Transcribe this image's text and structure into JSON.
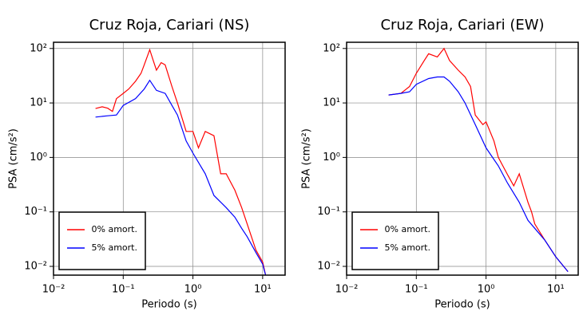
{
  "chart_data": [
    {
      "type": "line",
      "title": "Cruz Roja, Cariari (NS)",
      "xlabel": "Periodo (s)",
      "ylabel": "PSA (cm/s²)",
      "xlog": true,
      "ylog": true,
      "grid": true,
      "legend": "lower left",
      "xlim": [
        0.01,
        21
      ],
      "ylim": [
        0.0069,
        130
      ],
      "xticks": [
        {
          "value": 0.01,
          "label": "10⁻²"
        },
        {
          "value": 0.1,
          "label": "10⁻¹"
        },
        {
          "value": 1,
          "label": "10⁰"
        },
        {
          "value": 10,
          "label": "10¹"
        }
      ],
      "yticks": [
        {
          "value": 0.01,
          "label": "10⁻²"
        },
        {
          "value": 0.1,
          "label": "10⁻¹"
        },
        {
          "value": 1,
          "label": "10⁰"
        },
        {
          "value": 10,
          "label": "10¹"
        },
        {
          "value": 100,
          "label": "10²"
        }
      ],
      "series": [
        {
          "name": "0% amort.",
          "color": "#ff0000",
          "x": [
            0.04,
            0.05,
            0.06,
            0.07,
            0.08,
            0.1,
            0.12,
            0.15,
            0.18,
            0.2,
            0.24,
            0.27,
            0.3,
            0.35,
            0.4,
            0.5,
            0.6,
            0.8,
            1.0,
            1.2,
            1.5,
            2,
            2.5,
            3,
            4,
            5,
            6,
            8,
            10,
            11
          ],
          "values": [
            7.9,
            8.5,
            8,
            7,
            12,
            15,
            18,
            25,
            35,
            50,
            95,
            60,
            40,
            55,
            50,
            20,
            10,
            3,
            3,
            1.5,
            3,
            2.5,
            0.5,
            0.5,
            0.25,
            0.12,
            0.06,
            0.02,
            0.012,
            0.007
          ]
        },
        {
          "name": "5% amort.",
          "color": "#0000ff",
          "x": [
            0.04,
            0.06,
            0.08,
            0.1,
            0.15,
            0.2,
            0.24,
            0.3,
            0.4,
            0.5,
            0.6,
            0.8,
            1.0,
            1.5,
            2,
            3,
            4,
            5,
            6,
            8,
            10,
            11
          ],
          "values": [
            5.5,
            5.8,
            6,
            9,
            12,
            18,
            26,
            17,
            15,
            9,
            6,
            2,
            1.2,
            0.5,
            0.2,
            0.12,
            0.08,
            0.05,
            0.035,
            0.018,
            0.011,
            0.007
          ]
        }
      ]
    },
    {
      "type": "line",
      "title": "Cruz Roja, Cariari (EW)",
      "xlabel": "Periodo (s)",
      "ylabel": "PSA (cm/s²)",
      "xlog": true,
      "ylog": true,
      "grid": true,
      "legend": "lower left",
      "xlim": [
        0.01,
        21
      ],
      "ylim": [
        0.0069,
        130
      ],
      "xticks": [
        {
          "value": 0.01,
          "label": "10⁻²"
        },
        {
          "value": 0.1,
          "label": "10⁻¹"
        },
        {
          "value": 1,
          "label": "10⁰"
        },
        {
          "value": 10,
          "label": "10¹"
        }
      ],
      "yticks": [
        {
          "value": 0.01,
          "label": "10⁻²"
        },
        {
          "value": 0.1,
          "label": "10⁻¹"
        },
        {
          "value": 1,
          "label": "10⁰"
        },
        {
          "value": 10,
          "label": "10¹"
        },
        {
          "value": 100,
          "label": "10²"
        }
      ],
      "series": [
        {
          "name": "0% amort.",
          "color": "#ff0000",
          "x": [
            0.04,
            0.06,
            0.08,
            0.1,
            0.13,
            0.15,
            0.2,
            0.25,
            0.3,
            0.4,
            0.5,
            0.6,
            0.7,
            0.9,
            1,
            1.3,
            1.5,
            2,
            2.5,
            3,
            4,
            4.5,
            5,
            7,
            10,
            15
          ],
          "values": [
            14,
            15,
            20,
            35,
            60,
            80,
            70,
            100,
            60,
            40,
            30,
            20,
            6,
            4,
            4.5,
            2,
            1.0,
            0.5,
            0.3,
            0.5,
            0.15,
            0.1,
            0.06,
            0.03,
            0.015,
            0.008
          ]
        },
        {
          "name": "5% amort.",
          "color": "#0000ff",
          "x": [
            0.04,
            0.06,
            0.08,
            0.1,
            0.15,
            0.2,
            0.25,
            0.3,
            0.4,
            0.5,
            0.7,
            1,
            1.5,
            2,
            3,
            4,
            5,
            7,
            10,
            15
          ],
          "values": [
            14,
            15,
            16,
            22,
            28,
            30,
            30,
            25,
            16,
            10,
            4,
            1.5,
            0.7,
            0.35,
            0.15,
            0.07,
            0.05,
            0.03,
            0.015,
            0.008
          ]
        }
      ]
    }
  ]
}
